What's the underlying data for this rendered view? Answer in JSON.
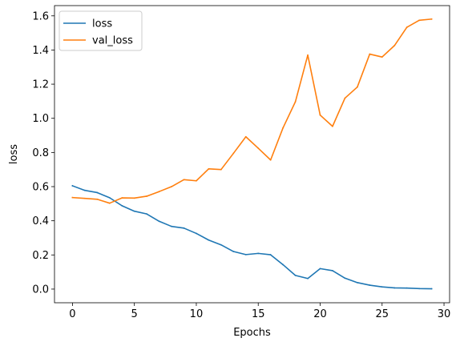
{
  "chart_data": {
    "type": "line",
    "xlabel": "Epochs",
    "ylabel": "loss",
    "xlim": [
      -1.45,
      30.45
    ],
    "ylim": [
      -0.08,
      1.66
    ],
    "x_ticks": [
      0,
      5,
      10,
      15,
      20,
      25,
      30
    ],
    "y_ticks": [
      0.0,
      0.2,
      0.4,
      0.6,
      0.8,
      1.0,
      1.2,
      1.4,
      1.6
    ],
    "grid": false,
    "legend_position": "top-left",
    "x": [
      0,
      1,
      2,
      3,
      4,
      5,
      6,
      7,
      8,
      9,
      10,
      11,
      12,
      13,
      14,
      15,
      16,
      17,
      18,
      19,
      20,
      21,
      22,
      23,
      24,
      25,
      26,
      27,
      28,
      29
    ],
    "series": [
      {
        "name": "loss",
        "color": "#1f77b4",
        "values": [
          0.605,
          0.578,
          0.565,
          0.535,
          0.488,
          0.456,
          0.44,
          0.397,
          0.367,
          0.357,
          0.326,
          0.287,
          0.259,
          0.22,
          0.202,
          0.209,
          0.201,
          0.143,
          0.08,
          0.062,
          0.12,
          0.108,
          0.064,
          0.038,
          0.023,
          0.013,
          0.007,
          0.006,
          0.003,
          0.002
        ]
      },
      {
        "name": "val_loss",
        "color": "#ff7f0e",
        "values": [
          0.536,
          0.531,
          0.526,
          0.503,
          0.534,
          0.533,
          0.544,
          0.571,
          0.6,
          0.641,
          0.634,
          0.704,
          0.7,
          0.795,
          0.892,
          0.825,
          0.756,
          0.944,
          1.097,
          1.37,
          1.019,
          0.953,
          1.118,
          1.183,
          1.376,
          1.359,
          1.426,
          1.533,
          1.574,
          1.581
        ]
      }
    ]
  }
}
